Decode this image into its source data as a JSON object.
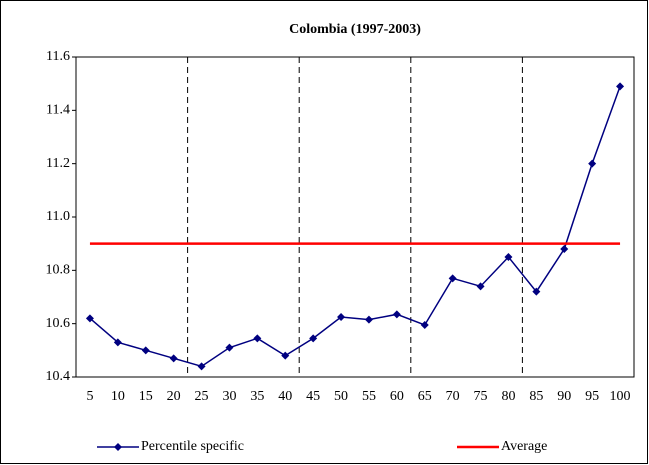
{
  "chart_data": {
    "type": "line",
    "title": "Colombia (1997-2003)",
    "categories": [
      5,
      10,
      15,
      20,
      25,
      30,
      35,
      40,
      45,
      50,
      55,
      60,
      65,
      70,
      75,
      80,
      85,
      90,
      95,
      100
    ],
    "series": [
      {
        "name": "Percentile specific",
        "color": "#000080",
        "values": [
          10.62,
          10.53,
          10.5,
          10.47,
          10.44,
          10.51,
          10.545,
          10.48,
          10.545,
          10.625,
          10.615,
          10.635,
          10.595,
          10.77,
          10.74,
          10.85,
          10.72,
          10.88,
          11.2,
          11.49
        ]
      },
      {
        "name": "Average",
        "color": "#ff0000",
        "values": [
          10.9,
          10.9,
          10.9,
          10.9,
          10.9,
          10.9,
          10.9,
          10.9,
          10.9,
          10.9,
          10.9,
          10.9,
          10.9,
          10.9,
          10.9,
          10.9,
          10.9,
          10.9,
          10.9,
          10.9
        ]
      }
    ],
    "ylim": [
      10.4,
      11.6
    ],
    "yticks": [
      10.4,
      10.6,
      10.8,
      {
        "value": 11,
        "label": "11.0"
      },
      11.2,
      11.4,
      11.6
    ]
  }
}
